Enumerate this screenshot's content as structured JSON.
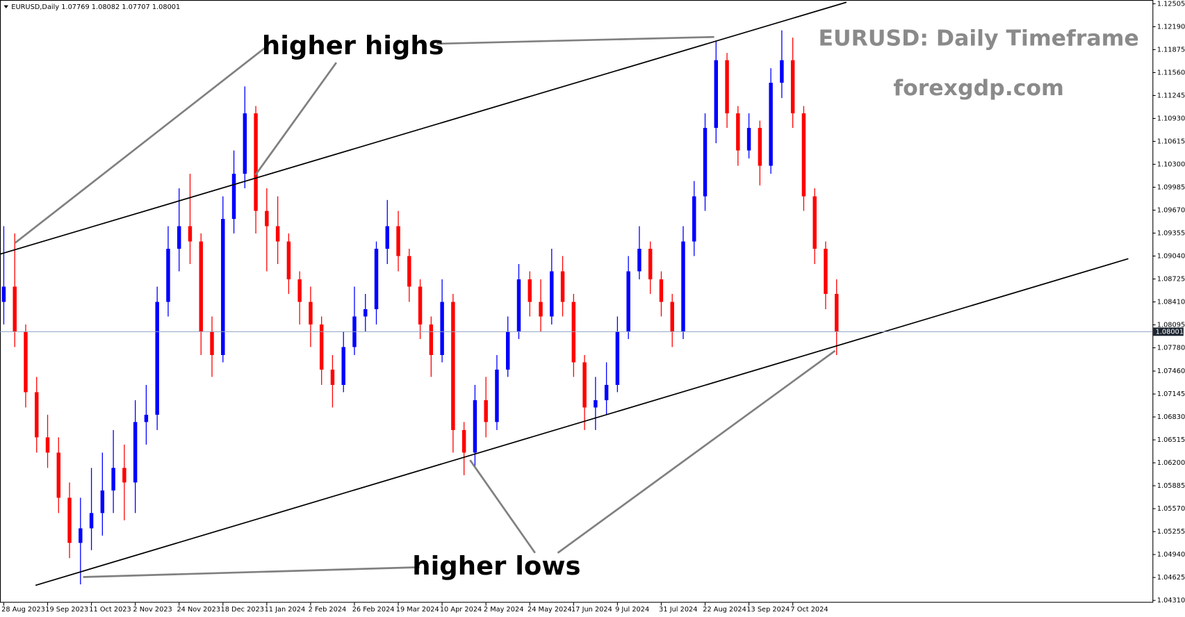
{
  "chart_data": {
    "type": "candlestick",
    "header": "EURUSD,Daily  1.07769 1.08082 1.07707 1.08001",
    "title": "EURUSD: Daily Timeframe",
    "subtitle": "forexgdp.com",
    "annotations": {
      "higher_highs": "higher highs",
      "higher_lows": "higher lows"
    },
    "up_color": "#0000ff",
    "down_color": "#ff0000",
    "current_price": 1.08001,
    "ylim": [
      1.0431,
      1.12505
    ],
    "yticks": [
      1.12505,
      {
        "value": 1.1219,
        "label": "1.12190"
      },
      1.11875,
      {
        "value": 1.1156,
        "label": "1.11560"
      },
      1.11245,
      {
        "value": 1.1093,
        "label": "1.10930"
      },
      1.10615,
      {
        "value": 1.103,
        "label": "1.10300"
      },
      1.09985,
      {
        "value": 1.0967,
        "label": "1.09670"
      },
      1.09355,
      {
        "value": 1.0904,
        "label": "1.09040"
      },
      1.08725,
      {
        "value": 1.0841,
        "label": "1.08410"
      },
      1.08095,
      {
        "value": 1.0778,
        "label": "1.07780"
      },
      {
        "value": 1.0746,
        "label": "1.07460"
      },
      1.07145,
      {
        "value": 1.0683,
        "label": "1.06830"
      },
      1.06515,
      {
        "value": 1.062,
        "label": "1.06200"
      },
      1.05885,
      {
        "value": 1.0557,
        "label": "1.05570"
      },
      1.05255,
      {
        "value": 1.0494,
        "label": "1.04940"
      },
      1.04625,
      {
        "value": 1.0431,
        "label": "1.04310"
      }
    ],
    "x_labels": [
      "28 Aug 2023",
      "19 Sep 2023",
      "11 Oct 2023",
      "2 Nov 2023",
      "24 Nov 2023",
      "18 Dec 2023",
      "11 Jan 2024",
      "2 Feb 2024",
      "26 Feb 2024",
      "19 Mar 2024",
      "10 Apr 2024",
      "2 May 2024",
      "24 May 2024",
      "17 Jun 2024",
      "9 Jul 2024",
      "31 Jul 2024",
      "22 Aug 2024",
      "13 Sep 2024",
      "7 Oct 2024"
    ],
    "candles": {
      "open": [
        1.0841,
        1.0862,
        1.08,
        1.0717,
        1.0655,
        1.0634,
        1.0572,
        1.051,
        1.053,
        1.0551,
        1.0582,
        1.0613,
        1.0593,
        1.0676,
        1.0686,
        1.0841,
        1.0914,
        1.0945,
        1.0924,
        1.08,
        1.0768,
        1.0955,
        1.1017,
        1.11,
        1.0966,
        1.0945,
        1.0924,
        1.0872,
        1.0841,
        1.081,
        1.0748,
        1.0727,
        1.0779,
        1.0821,
        1.0831,
        1.0914,
        1.0945,
        1.0904,
        1.0862,
        1.081,
        1.0768,
        1.0841,
        1.0665,
        1.0634,
        1.0706,
        1.0676,
        1.0748,
        1.08,
        1.0872,
        1.0841,
        1.0821,
        1.0883,
        1.0841,
        1.0758,
        1.0696,
        1.0706,
        1.0727,
        1.08,
        1.0883,
        1.0914,
        1.0872,
        1.0841,
        1.08,
        1.0924,
        1.0986,
        1.108,
        1.1173,
        1.11,
        1.1049,
        1.108,
        1.1028,
        1.1142,
        1.1173,
        1.11,
        1.0986,
        1.0914,
        1.0852
      ],
      "high": [
        1.0945,
        1.0935,
        1.081,
        1.0738,
        1.0686,
        1.0655,
        1.0593,
        1.0572,
        1.0613,
        1.0634,
        1.0665,
        1.0645,
        1.0706,
        1.0727,
        1.0862,
        1.0945,
        1.0997,
        1.1017,
        1.0935,
        1.0821,
        1.0986,
        1.1049,
        1.1137,
        1.111,
        1.0997,
        1.0986,
        1.0935,
        1.0883,
        1.0862,
        1.0821,
        1.0768,
        1.08,
        1.0862,
        1.0852,
        1.0924,
        1.0981,
        1.0966,
        1.0914,
        1.0872,
        1.0821,
        1.0872,
        1.0852,
        1.0676,
        1.0727,
        1.0738,
        1.0768,
        1.0821,
        1.0893,
        1.0883,
        1.0872,
        1.0914,
        1.0904,
        1.0852,
        1.0768,
        1.0738,
        1.0758,
        1.0821,
        1.0904,
        1.0945,
        1.0924,
        1.0883,
        1.0852,
        1.0945,
        1.1007,
        1.11,
        1.12,
        1.1183,
        1.111,
        1.11,
        1.109,
        1.1162,
        1.1214,
        1.1204,
        1.111,
        1.0997,
        1.0924,
        1.0872
      ],
      "low": [
        1.081,
        1.0779,
        1.0696,
        1.0634,
        1.0613,
        1.0551,
        1.0489,
        1.0453,
        1.05,
        1.052,
        1.0551,
        1.0541,
        1.0551,
        1.0645,
        1.0665,
        1.0821,
        1.0883,
        1.0893,
        1.0768,
        1.0738,
        1.0758,
        1.0935,
        1.0997,
        1.0935,
        1.0883,
        1.0893,
        1.0852,
        1.081,
        1.0779,
        1.0727,
        1.0696,
        1.0717,
        1.0768,
        1.08,
        1.081,
        1.0893,
        1.0883,
        1.0841,
        1.079,
        1.0738,
        1.0758,
        1.0634,
        1.0603,
        1.0613,
        1.0655,
        1.0665,
        1.0738,
        1.079,
        1.0821,
        1.08,
        1.081,
        1.0821,
        1.0738,
        1.0665,
        1.0665,
        1.0686,
        1.0717,
        1.079,
        1.0872,
        1.0852,
        1.0821,
        1.0779,
        1.079,
        1.0904,
        1.0966,
        1.1059,
        1.108,
        1.1028,
        1.1038,
        1.1001,
        1.1017,
        1.1121,
        1.108,
        1.0966,
        1.0893,
        1.0831,
        1.0768
      ],
      "close": [
        1.0862,
        1.08,
        1.0717,
        1.0655,
        1.0634,
        1.0572,
        1.051,
        1.053,
        1.0551,
        1.0582,
        1.0613,
        1.0593,
        1.0676,
        1.0686,
        1.0841,
        1.0914,
        1.0945,
        1.0924,
        1.08,
        1.0768,
        1.0955,
        1.1017,
        1.11,
        1.0966,
        1.0945,
        1.0924,
        1.0872,
        1.0841,
        1.081,
        1.0748,
        1.0727,
        1.0779,
        1.0821,
        1.0831,
        1.0914,
        1.0945,
        1.0904,
        1.0862,
        1.081,
        1.0768,
        1.0841,
        1.0665,
        1.0634,
        1.0706,
        1.0676,
        1.0748,
        1.08,
        1.0872,
        1.0841,
        1.0821,
        1.0883,
        1.0841,
        1.0758,
        1.0696,
        1.0706,
        1.0727,
        1.08,
        1.0883,
        1.0914,
        1.0872,
        1.0841,
        1.08,
        1.0924,
        1.0986,
        1.108,
        1.1173,
        1.11,
        1.1049,
        1.108,
        1.1028,
        1.1142,
        1.1173,
        1.11,
        1.0986,
        1.0914,
        1.0852,
        1.08
      ]
    }
  }
}
